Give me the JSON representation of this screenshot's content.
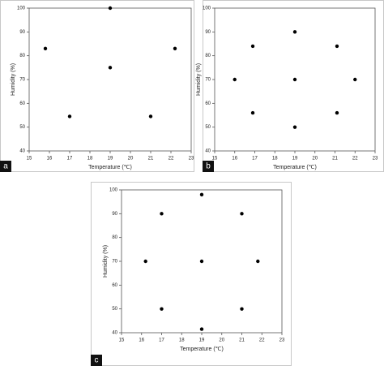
{
  "chart_data": [
    {
      "type": "scatter",
      "panel_label": "a",
      "xlabel": "Temperature (℃)",
      "ylabel": "Humidity (%)",
      "x": [
        15.8,
        17,
        19,
        19,
        21,
        22.2
      ],
      "values": [
        83,
        54.5,
        100,
        75,
        54.5,
        83
      ],
      "color": "#000000",
      "xlim": [
        15,
        23
      ],
      "xticks": [
        15,
        16,
        17,
        18,
        19,
        20,
        21,
        22,
        23
      ],
      "ylim": [
        40,
        100
      ],
      "yticks": [
        40,
        50,
        60,
        70,
        80,
        90,
        100
      ]
    },
    {
      "type": "scatter",
      "panel_label": "b",
      "xlabel": "Temperature (℃)",
      "ylabel": "Humidity (%)",
      "x": [
        16,
        16.9,
        16.9,
        19,
        19,
        19,
        21.1,
        21.1,
        22
      ],
      "values": [
        70,
        84,
        56,
        90,
        70,
        50,
        84,
        56,
        70
      ],
      "color": "#000000",
      "xlim": [
        15,
        23
      ],
      "xticks": [
        15,
        16,
        17,
        18,
        19,
        20,
        21,
        22,
        23
      ],
      "ylim": [
        40,
        100
      ],
      "yticks": [
        40,
        50,
        60,
        70,
        80,
        90,
        100
      ]
    },
    {
      "type": "scatter",
      "panel_label": "c",
      "xlabel": "Temperature (℃)",
      "ylabel": "Humidity (%)",
      "x": [
        16.2,
        17,
        17,
        19,
        19,
        19,
        21,
        21,
        21.8
      ],
      "values": [
        70,
        90,
        50,
        98,
        70,
        41.5,
        90,
        50,
        70
      ],
      "color": "#000000",
      "xlim": [
        15,
        23
      ],
      "xticks": [
        15,
        16,
        17,
        18,
        19,
        20,
        21,
        22,
        23
      ],
      "ylim": [
        40,
        100
      ],
      "yticks": [
        40,
        50,
        60,
        70,
        80,
        90,
        100
      ]
    }
  ]
}
